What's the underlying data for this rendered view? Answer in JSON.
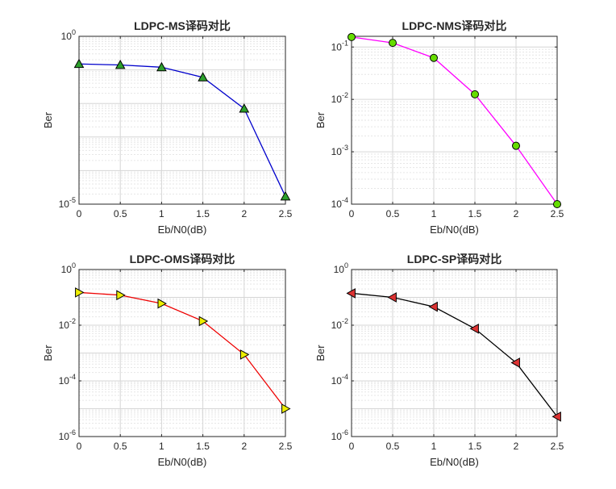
{
  "chart_data": [
    {
      "type": "line",
      "title": "LDPC-MS译码对比",
      "xlabel": "Eb/N0(dB)",
      "ylabel": "Ber",
      "yscale": "log",
      "grid": true,
      "xlim": [
        0,
        2.5
      ],
      "ylim": [
        1e-05,
        1
      ],
      "xticks": [
        "0",
        "0.5",
        "1",
        "1.5",
        "2",
        "2.5"
      ],
      "yticks": [
        {
          "base": "10",
          "exp": "-5",
          "value": 1e-05
        },
        {
          "base": "10",
          "exp": "0",
          "value": 1
        }
      ],
      "series": [
        {
          "x": [
            0,
            0.5,
            1,
            1.5,
            2,
            2.5
          ],
          "y": [
            0.15,
            0.14,
            0.12,
            0.06,
            0.007,
            1.7e-05
          ],
          "line_color": "#0000cc",
          "marker": "triangle-up",
          "marker_color": "#2ca02c"
        }
      ]
    },
    {
      "type": "line",
      "title": "LDPC-NMS译码对比",
      "xlabel": "Eb/N0(dB)",
      "ylabel": "Ber",
      "yscale": "log",
      "grid": true,
      "xlim": [
        0,
        2.5
      ],
      "ylim": [
        0.0001,
        0.16
      ],
      "xticks": [
        "0",
        "0.5",
        "1",
        "1.5",
        "2",
        "2.5"
      ],
      "yticks": [
        {
          "base": "10",
          "exp": "-4",
          "value": 0.0001
        },
        {
          "base": "10",
          "exp": "-3",
          "value": 0.001
        },
        {
          "base": "10",
          "exp": "-2",
          "value": 0.01
        },
        {
          "base": "10",
          "exp": "-1",
          "value": 0.1
        }
      ],
      "series": [
        {
          "x": [
            0,
            0.5,
            1,
            1.5,
            2,
            2.5
          ],
          "y": [
            0.155,
            0.12,
            0.062,
            0.0125,
            0.0013,
            0.0001
          ],
          "line_color": "#ff00ff",
          "marker": "circle",
          "marker_color": "#66dd00"
        }
      ]
    },
    {
      "type": "line",
      "title": "LDPC-OMS译码对比",
      "xlabel": "Eb/N0(dB)",
      "ylabel": "Ber",
      "yscale": "log",
      "grid": true,
      "xlim": [
        0,
        2.5
      ],
      "ylim": [
        1e-06,
        1
      ],
      "xticks": [
        "0",
        "0.5",
        "1",
        "1.5",
        "2",
        "2.5"
      ],
      "yticks": [
        {
          "base": "10",
          "exp": "-6",
          "value": 1e-06
        },
        {
          "base": "10",
          "exp": "-4",
          "value": 0.0001
        },
        {
          "base": "10",
          "exp": "-2",
          "value": 0.01
        },
        {
          "base": "10",
          "exp": "0",
          "value": 1
        }
      ],
      "series": [
        {
          "x": [
            0,
            0.5,
            1,
            1.5,
            2,
            2.5
          ],
          "y": [
            0.15,
            0.12,
            0.06,
            0.014,
            0.00088,
            1e-05
          ],
          "line_color": "#ee0000",
          "marker": "triangle-right",
          "marker_color": "#eeee00"
        }
      ]
    },
    {
      "type": "line",
      "title": "LDPC-SP译码对比",
      "xlabel": "Eb/N0(dB)",
      "ylabel": "Ber",
      "yscale": "log",
      "grid": true,
      "xlim": [
        0,
        2.5
      ],
      "ylim": [
        1e-06,
        1
      ],
      "xticks": [
        "0",
        "0.5",
        "1",
        "1.5",
        "2",
        "2.5"
      ],
      "yticks": [
        {
          "base": "10",
          "exp": "-6",
          "value": 1e-06
        },
        {
          "base": "10",
          "exp": "-4",
          "value": 0.0001
        },
        {
          "base": "10",
          "exp": "-2",
          "value": 0.01
        },
        {
          "base": "10",
          "exp": "0",
          "value": 1
        }
      ],
      "series": [
        {
          "x": [
            0,
            0.5,
            1,
            1.5,
            2,
            2.5
          ],
          "y": [
            0.14,
            0.1,
            0.046,
            0.0075,
            0.00045,
            5.2e-06
          ],
          "line_color": "#000000",
          "marker": "triangle-left",
          "marker_color": "#dd3333"
        }
      ]
    }
  ]
}
